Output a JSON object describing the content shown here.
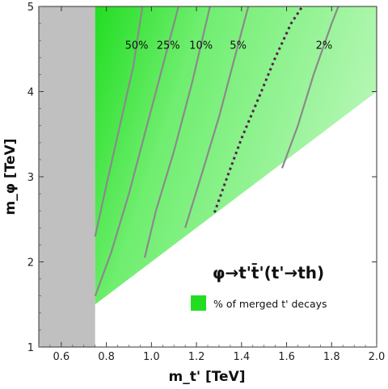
{
  "chart_data": {
    "type": "contour",
    "xlabel": "m_t' [TeV]",
    "ylabel": "m_φ [TeV]",
    "xlim": [
      0.5,
      2.0
    ],
    "ylim": [
      1,
      5
    ],
    "xticks": [
      0.6,
      0.8,
      1.0,
      1.2,
      1.4,
      1.6,
      1.8,
      2.0
    ],
    "xtick_labels": [
      "0.6",
      "0.8",
      "1.0",
      "1.2",
      "1.4",
      "1.6",
      "1.8",
      "2.0"
    ],
    "yticks": [
      1,
      2,
      3,
      4,
      5
    ],
    "ytick_labels": [
      "1",
      "2",
      "3",
      "4",
      "5"
    ],
    "process_label": "φ→t't̄'(t'→th)",
    "legend": {
      "label": "% of merged t' decays",
      "color": "#22dd22",
      "position": "lower-right"
    },
    "excluded_region": {
      "x_range": [
        0.5,
        0.75
      ],
      "color": "#c0c0c0"
    },
    "allowed_boundary": {
      "x": [
        0.75,
        2.0
      ],
      "y": [
        1.5,
        4.0
      ]
    },
    "contours": [
      {
        "label": "50%",
        "points": [
          [
            0.75,
            2.3
          ],
          [
            0.8,
            2.9
          ],
          [
            0.86,
            3.6
          ],
          [
            0.92,
            4.3
          ],
          [
            0.96,
            5.0
          ]
        ]
      },
      {
        "label": "25%",
        "points": [
          [
            0.75,
            1.6
          ],
          [
            0.82,
            2.1
          ],
          [
            0.9,
            2.8
          ],
          [
            0.98,
            3.6
          ],
          [
            1.06,
            4.4
          ],
          [
            1.12,
            5.0
          ]
        ]
      },
      {
        "label": "10%",
        "points": [
          [
            0.97,
            2.05
          ],
          [
            1.02,
            2.6
          ],
          [
            1.1,
            3.3
          ],
          [
            1.18,
            4.1
          ],
          [
            1.26,
            5.0
          ]
        ]
      },
      {
        "label": "5%",
        "points": [
          [
            1.15,
            2.4
          ],
          [
            1.22,
            3.0
          ],
          [
            1.3,
            3.7
          ],
          [
            1.37,
            4.4
          ],
          [
            1.43,
            5.0
          ]
        ]
      },
      {
        "label": "2%",
        "points": [
          [
            1.58,
            3.1
          ],
          [
            1.65,
            3.6
          ],
          [
            1.72,
            4.2
          ],
          [
            1.8,
            4.8
          ],
          [
            1.83,
            5.0
          ]
        ]
      }
    ],
    "dashed_line": {
      "color": "#55204f",
      "points": [
        [
          1.28,
          2.58
        ],
        [
          1.33,
          2.95
        ],
        [
          1.4,
          3.45
        ],
        [
          1.48,
          3.95
        ],
        [
          1.55,
          4.4
        ],
        [
          1.62,
          4.8
        ],
        [
          1.67,
          5.0
        ]
      ]
    },
    "color_gradient": {
      "high": "#22dd22",
      "low": "#b6f7b6"
    }
  }
}
